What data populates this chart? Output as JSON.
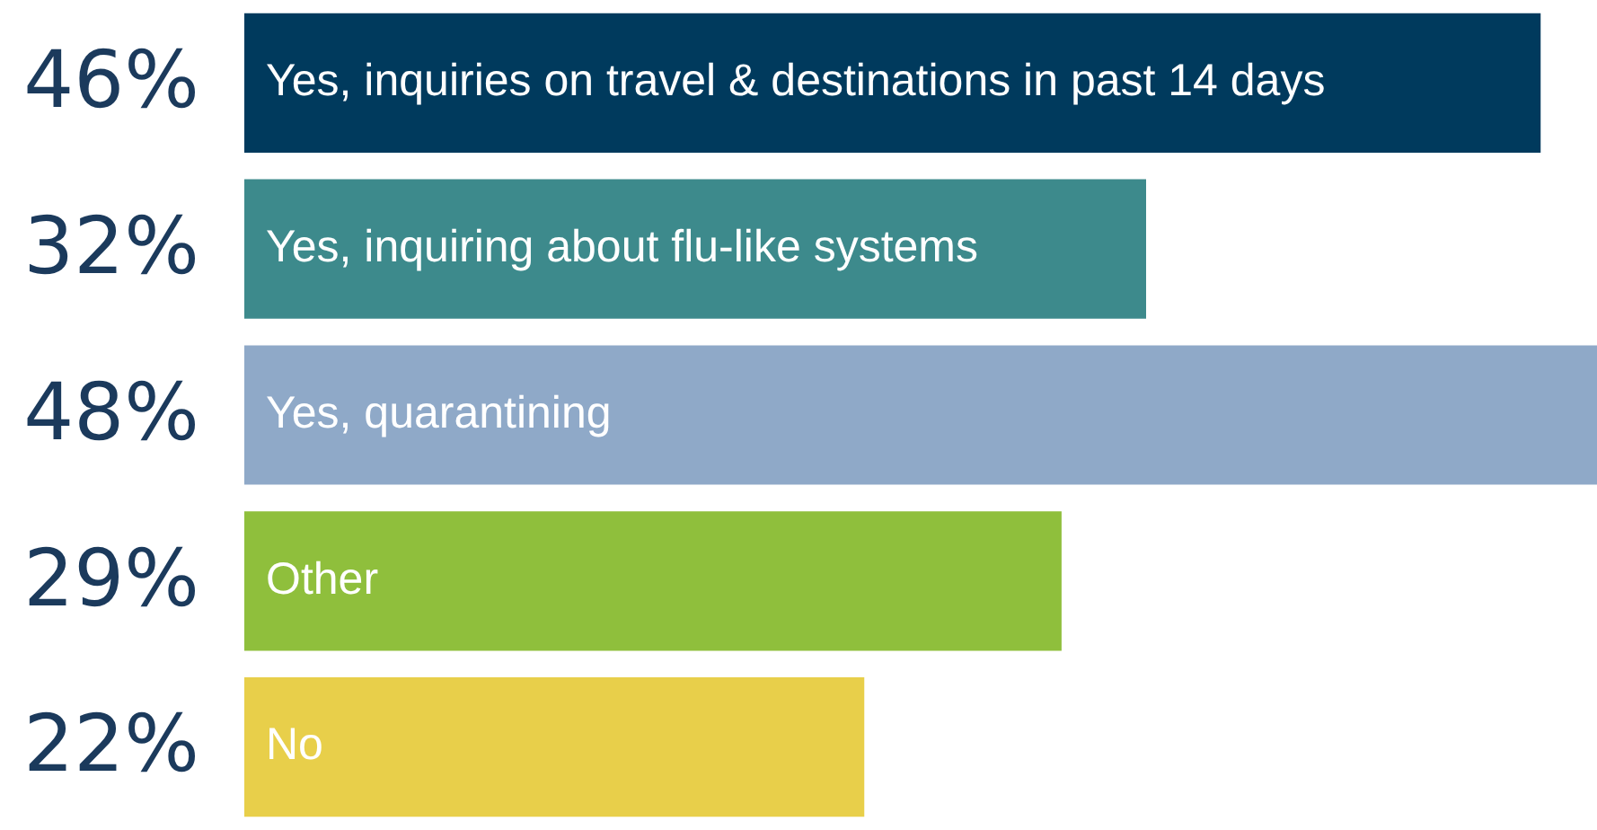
{
  "chart_data": {
    "type": "bar",
    "orientation": "horizontal",
    "categories": [
      "Yes, inquiries on travel & destinations in past 14 days",
      "Yes, inquiring about flu-like systems",
      "Yes, quarantining",
      "Other",
      "No"
    ],
    "values": [
      46,
      32,
      48,
      29,
      22
    ],
    "value_labels": [
      "46%",
      "32%",
      "48%",
      "29%",
      "22%"
    ],
    "colors": [
      "#003a5d",
      "#3d8a8c",
      "#8fa9c8",
      "#8fbf3c",
      "#e8cf4a"
    ],
    "legend": false
  }
}
